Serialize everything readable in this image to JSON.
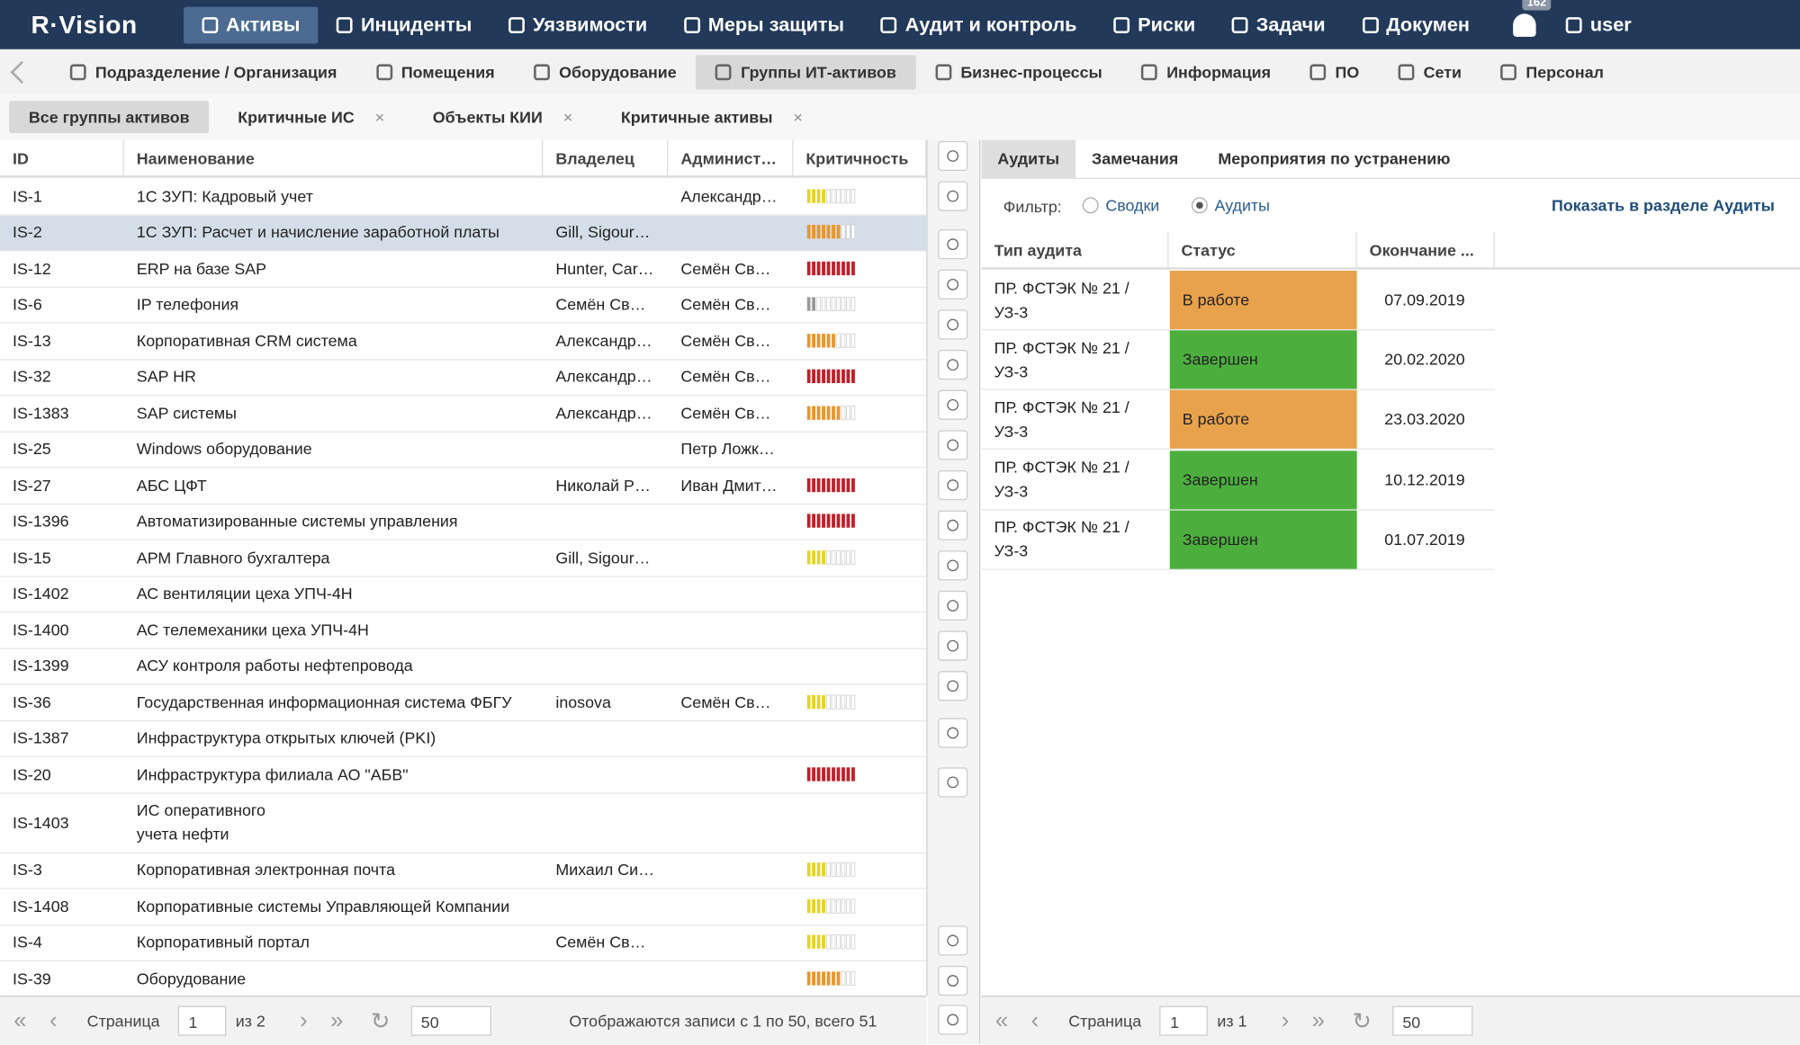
{
  "nav": {
    "brand": "R·Vision",
    "items": [
      {
        "label": "Активы",
        "active": true
      },
      {
        "label": "Инциденты"
      },
      {
        "label": "Уязвимости"
      },
      {
        "label": "Меры защиты"
      },
      {
        "label": "Аудит и контроль"
      },
      {
        "label": "Риски"
      },
      {
        "label": "Задачи"
      },
      {
        "label": "Докумен"
      }
    ],
    "notifications": "162",
    "user": "user"
  },
  "subnav": [
    {
      "label": "Подразделение / Организация"
    },
    {
      "label": "Помещения"
    },
    {
      "label": "Оборудование"
    },
    {
      "label": "Группы ИТ-активов",
      "active": true
    },
    {
      "label": "Бизнес-процессы"
    },
    {
      "label": "Информация"
    },
    {
      "label": "ПО"
    },
    {
      "label": "Сети"
    },
    {
      "label": "Персонал"
    }
  ],
  "tabs": [
    {
      "label": "Все группы активов",
      "active": true
    },
    {
      "label": "Критичные ИС",
      "closable": true
    },
    {
      "label": "Объекты КИИ",
      "closable": true
    },
    {
      "label": "Критичные активы",
      "closable": true
    }
  ],
  "table": {
    "columns": [
      "ID",
      "Наименование",
      "Владелец",
      "Админист…",
      "Критичность"
    ],
    "rows": [
      {
        "id": "IS-1",
        "name": "1С ЗУП: Кадровый учет",
        "owner": "",
        "admin": "Александр…",
        "criticality": 4
      },
      {
        "id": "IS-2",
        "name": "1С ЗУП: Расчет и начисление заработной платы",
        "owner": "Gill, Sigour…",
        "admin": "",
        "criticality": 7,
        "selected": true
      },
      {
        "id": "IS-12",
        "name": "ERP на базе SAP",
        "owner": "Hunter, Car…",
        "admin": "Семён Св…",
        "criticality": 10
      },
      {
        "id": "IS-6",
        "name": "IP телефония",
        "owner": "Семён Св…",
        "admin": "Семён Св…",
        "criticality": 2
      },
      {
        "id": "IS-13",
        "name": "Корпоративная CRM система",
        "owner": "Александр…",
        "admin": "Семён Св…",
        "criticality": 6
      },
      {
        "id": "IS-32",
        "name": "SAP HR",
        "owner": "Александр…",
        "admin": "Семён Св…",
        "criticality": 10
      },
      {
        "id": "IS-1383",
        "name": "SAP системы",
        "owner": "Александр…",
        "admin": "Семён Св…",
        "criticality": 7
      },
      {
        "id": "IS-25",
        "name": "Windows оборудование",
        "owner": "",
        "admin": "Петр Ложк…",
        "criticality": null
      },
      {
        "id": "IS-27",
        "name": "АБС ЦФТ",
        "owner": "Николай Р…",
        "admin": "Иван Дмит…",
        "criticality": 10
      },
      {
        "id": "IS-1396",
        "name": "Автоматизированные системы управления",
        "owner": "",
        "admin": "",
        "criticality": 10
      },
      {
        "id": "IS-15",
        "name": "АРМ Главного бухгалтера",
        "owner": "Gill, Sigour…",
        "admin": "",
        "criticality": 4
      },
      {
        "id": "IS-1402",
        "name": "АС вентиляции цеха УПЧ-4Н",
        "owner": "",
        "admin": "",
        "criticality": null
      },
      {
        "id": "IS-1400",
        "name": "АС телемеханики цеха УПЧ-4Н",
        "owner": "",
        "admin": "",
        "criticality": null
      },
      {
        "id": "IS-1399",
        "name": "АСУ контроля работы нефтепровода",
        "owner": "",
        "admin": "",
        "criticality": null
      },
      {
        "id": "IS-36",
        "name": "Государственная информационная система ФБГУ",
        "owner": "inosova",
        "admin": "Семён Св…",
        "criticality": 4
      },
      {
        "id": "IS-1387",
        "name": "Инфраструктура открытых ключей (PKI)",
        "owner": "",
        "admin": "",
        "criticality": null
      },
      {
        "id": "IS-20",
        "name": "Инфраструктура филиала АО \"АБВ\"",
        "owner": "",
        "admin": "",
        "criticality": 10
      },
      {
        "id": "IS-1403",
        "name": "ИС оперативного\nучета нефти",
        "owner": "",
        "admin": "",
        "criticality": null
      },
      {
        "id": "IS-3",
        "name": "Корпоративная электронная почта",
        "owner": "Михаил Си…",
        "admin": "",
        "criticality": 4
      },
      {
        "id": "IS-1408",
        "name": "Корпоративные системы Управляющей Компании",
        "owner": "",
        "admin": "",
        "criticality": 4
      },
      {
        "id": "IS-4",
        "name": "Корпоративный портал",
        "owner": "Семён Св…",
        "admin": "",
        "criticality": 4
      },
      {
        "id": "IS-39",
        "name": "Оборудование",
        "owner": "",
        "admin": "",
        "criticality": 7
      }
    ]
  },
  "pager_left": {
    "page_label": "Страница",
    "page": "1",
    "of": "из 2",
    "size": "50",
    "summary": "Отображаются записи с 1 по 50, всего 51"
  },
  "audit_panel": {
    "tabs": [
      {
        "label": "Аудиты",
        "active": true
      },
      {
        "label": "Замечания"
      },
      {
        "label": "Мероприятия по устранению"
      }
    ],
    "filter_label": "Фильтр:",
    "filter_options": [
      {
        "label": "Сводки"
      },
      {
        "label": "Аудиты",
        "checked": true
      }
    ],
    "link": "Показать в разделе Аудиты",
    "columns": [
      "Тип аудита",
      "Статус",
      "Окончание ..."
    ],
    "rows": [
      {
        "type": "ПР. ФСТЭК № 21 /\nУЗ-3",
        "status": "В работе",
        "color": "#e9a24c",
        "end": "07.09.2019"
      },
      {
        "type": "ПР. ФСТЭК № 21 /\nУЗ-3",
        "status": "Завершен",
        "color": "#4caf3d",
        "end": "20.02.2020"
      },
      {
        "type": "ПР. ФСТЭК № 21 /\nУЗ-3",
        "status": "В работе",
        "color": "#e9a24c",
        "end": "23.03.2020"
      },
      {
        "type": "ПР. ФСТЭК № 21 /\nУЗ-3",
        "status": "Завершен",
        "color": "#4caf3d",
        "end": "10.12.2019"
      },
      {
        "type": "ПР. ФСТЭК № 21 /\nУЗ-3",
        "status": "Завершен",
        "color": "#4caf3d",
        "end": "01.07.2019"
      }
    ]
  },
  "pager_right": {
    "page_label": "Страница",
    "page": "1",
    "of": "из 1",
    "size": "50"
  }
}
